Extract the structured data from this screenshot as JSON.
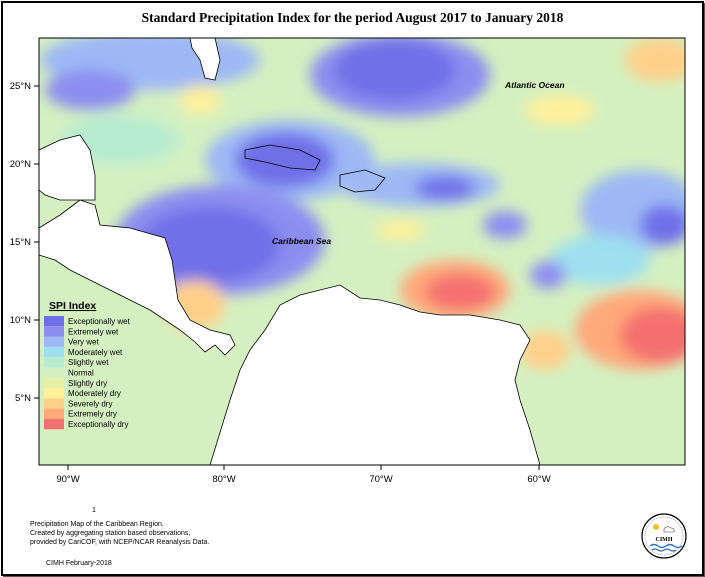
{
  "title": "Standard Precipitation Index for the period August 2017 to January 2018",
  "axes": {
    "lat_labels": [
      "25°N",
      "20°N",
      "15°N",
      "10°N",
      "5°N"
    ],
    "lon_labels": [
      "90°W",
      "80°W",
      "70°W",
      "60°W"
    ]
  },
  "places": {
    "atlantic": "Atlantic Ocean",
    "caribbean": "Caribbean Sea"
  },
  "legend": {
    "title": "SPI Index",
    "items": [
      {
        "label": "Exceptionally wet",
        "color": "#6f6fe8"
      },
      {
        "label": "Extremely wet",
        "color": "#8d8df0"
      },
      {
        "label": "Very wet",
        "color": "#9db8f5"
      },
      {
        "label": "Moderately wet",
        "color": "#9ee0ef"
      },
      {
        "label": "Slightly wet",
        "color": "#b8ecd0"
      },
      {
        "label": "Normal",
        "color": "#d4f0c0"
      },
      {
        "label": "Slightly dry",
        "color": "#e8f0a8"
      },
      {
        "label": "Moderately dry",
        "color": "#fff09a"
      },
      {
        "label": "Severely dry",
        "color": "#ffd08a"
      },
      {
        "label": "Extremely dry",
        "color": "#ffa87a"
      },
      {
        "label": "Exceptionally dry",
        "color": "#f47070"
      }
    ]
  },
  "footer": {
    "marker": "1",
    "caption_1": "Precipitation Map of the Caribbean Region.",
    "caption_2": "Created by aggregating station based observations,",
    "caption_3": "provided by CariCOF, with NCEP/NCAR Reanalysis Data.",
    "credit": "CIMH February-2018"
  },
  "logo": {
    "text": "CIMH",
    "icon": "cimh-logo-icon"
  }
}
